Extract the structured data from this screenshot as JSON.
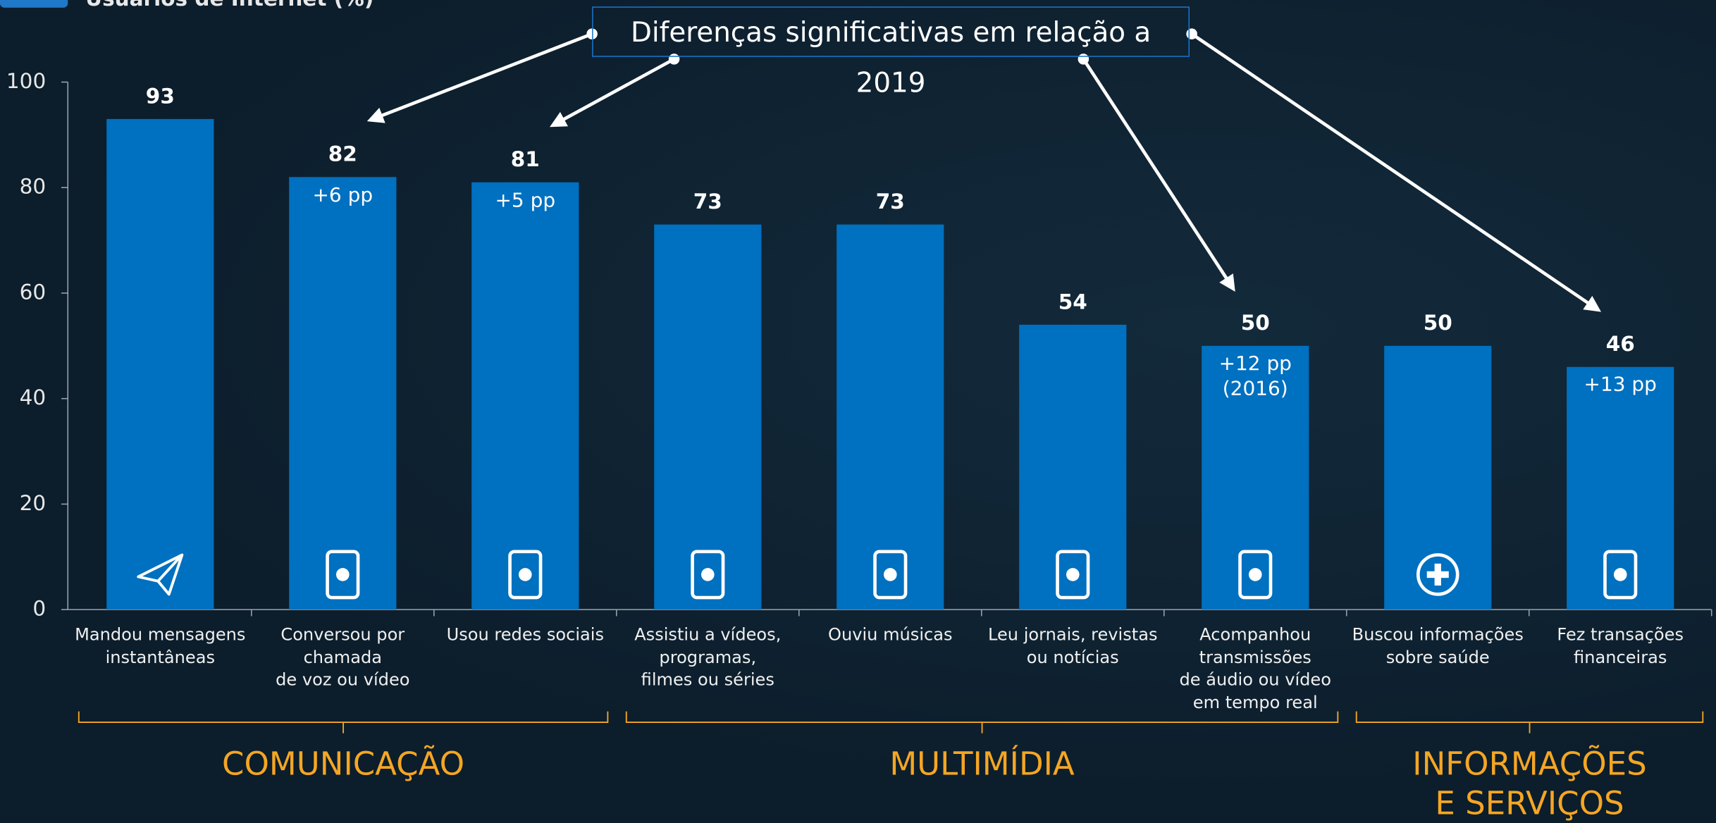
{
  "chart_data": {
    "type": "bar",
    "y_label": "Usuários de Internet (%)",
    "callout": "Diferenças significativas em relação a 2019",
    "categories": [
      "Mandou mensagens\ninstantâneas",
      "Conversou por\nchamada\nde voz ou vídeo",
      "Usou redes sociais",
      "Assistiu a vídeos,\nprogramas,\nfilmes ou séries",
      "Ouviu músicas",
      "Leu jornais, revistas\nou notícias",
      "Acompanhou\ntransmissões\nde áudio ou vídeo\nem tempo real",
      "Buscou informações\nsobre saúde",
      "Fez transações\nfinanceiras"
    ],
    "values": [
      93,
      82,
      81,
      73,
      73,
      54,
      50,
      50,
      46
    ],
    "bar_notes": [
      null,
      "+6 pp",
      "+5 pp",
      null,
      null,
      null,
      "+12 pp\n(2016)",
      null,
      "+13 pp"
    ],
    "groups": [
      "COMUNICAÇÃO",
      "MULTIMÍDIA",
      "INFORMAÇÕES\nE SERVIÇOS"
    ],
    "color": "#0070c0",
    "ylim": [
      0,
      100
    ],
    "yticks": [
      0,
      20,
      40,
      60,
      80,
      100
    ]
  }
}
